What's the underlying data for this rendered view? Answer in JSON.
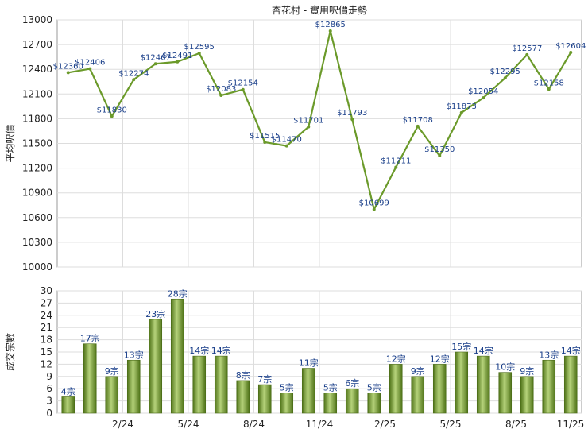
{
  "chart_data": [
    {
      "type": "line",
      "title": "杏花村 - 實用呎價走勢",
      "ylabel": "平均呎價",
      "ylim": [
        10000,
        13000
      ],
      "yticks": [
        10000,
        10300,
        10600,
        10900,
        11200,
        11500,
        11800,
        12100,
        12400,
        12700,
        13000
      ],
      "x_ticks": [
        "2/24",
        "5/24",
        "8/24",
        "11/24",
        "2/25",
        "5/25",
        "8/25",
        "11/25"
      ],
      "values": [
        12360,
        12406,
        11830,
        12274,
        12467,
        12491,
        12595,
        12083,
        12154,
        11515,
        11470,
        11701,
        12865,
        11793,
        10699,
        11211,
        11708,
        11350,
        11873,
        12054,
        12295,
        12577,
        12158,
        12604
      ],
      "labels": [
        "$12360",
        "$12406",
        "$11830",
        "$12274",
        "$12467",
        "$12491",
        "$12595",
        "$12083",
        "$12154",
        "$11515",
        "$11470",
        "$11701",
        "$12865",
        "$11793",
        "$10699",
        "$11211",
        "$11708",
        "$11350",
        "$11873",
        "$12054",
        "$12295",
        "$12577",
        "$12158",
        "$12604"
      ],
      "color": "#6b9a2a",
      "grid": true
    },
    {
      "type": "bar",
      "ylabel": "成交宗數",
      "ylim": [
        0,
        30
      ],
      "yticks": [
        0,
        3,
        6,
        9,
        12,
        15,
        18,
        21,
        24,
        27,
        30
      ],
      "x_ticks": [
        "2/24",
        "5/24",
        "8/24",
        "11/24",
        "2/25",
        "5/25",
        "8/25",
        "11/25"
      ],
      "values": [
        4,
        17,
        9,
        13,
        23,
        28,
        14,
        14,
        8,
        7,
        5,
        11,
        5,
        6,
        5,
        12,
        9,
        12,
        15,
        14,
        10,
        9,
        13,
        14
      ],
      "labels": [
        "4宗",
        "17宗",
        "9宗",
        "13宗",
        "23宗",
        "28宗",
        "14宗",
        "14宗",
        "8宗",
        "7宗",
        "5宗",
        "11宗",
        "5宗",
        "6宗",
        "5宗",
        "12宗",
        "9宗",
        "12宗",
        "15宗",
        "14宗",
        "10宗",
        "9宗",
        "13宗",
        "14宗"
      ],
      "color": "#6b9a2a",
      "grid": true
    }
  ]
}
